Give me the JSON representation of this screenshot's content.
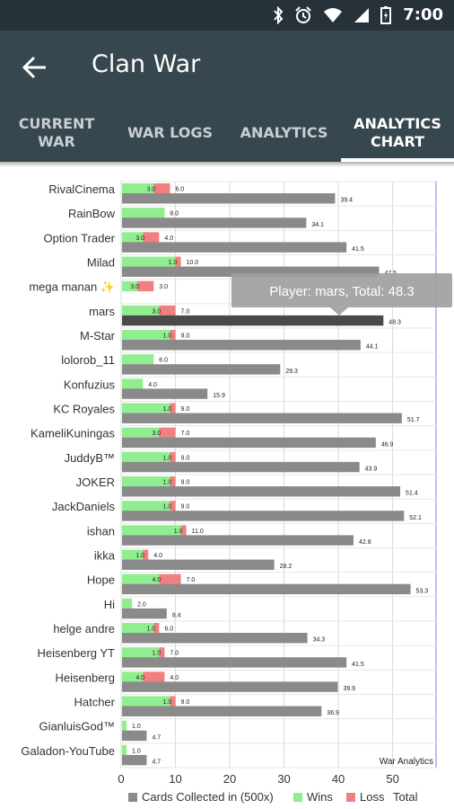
{
  "status_bar": {
    "time": "7:00",
    "icons": [
      "bluetooth-icon",
      "alarm-icon",
      "wifi-icon",
      "signal-icon",
      "battery-charging-icon"
    ]
  },
  "app_bar": {
    "title": "Clan War",
    "back_icon": "arrow-back-icon"
  },
  "tabs": [
    {
      "label": "CURRENT WAR",
      "line1": "CURRENT",
      "line2": "WAR",
      "active": false
    },
    {
      "label": "WAR LOGS",
      "line1": "WAR LOGS",
      "line2": "",
      "active": false
    },
    {
      "label": "ANALYTICS",
      "line1": "ANALYTICS",
      "line2": "",
      "active": false
    },
    {
      "label": "ANALYTICS CHART",
      "line1": "ANALYTICS",
      "line2": "CHART",
      "active": true
    }
  ],
  "colors": {
    "cards": "#8a8a8a",
    "wins": "#90ee90",
    "loss": "#f08080",
    "highlight": "#4a4a4a",
    "border": "#8a7ee0"
  },
  "chart_data": {
    "type": "bar",
    "orientation": "horizontal",
    "description_label": "War Analytics",
    "categories": [
      "RivalCinema",
      "RainBow",
      "Option Trader",
      "Milad",
      "mega manan ✨",
      "mars",
      "M-Star",
      "lolorob_11",
      "Konfuzius",
      "KC Royales",
      "KameliKuningas",
      "JuddyB™",
      "JOKER",
      "JackDaniels",
      "ishan",
      "ikka",
      "Hope",
      "Hi",
      "helge andre",
      "Heisenberg YT",
      "Heisenberg",
      "Hatcher",
      "GianluisGod™",
      "Galadon-YouTube"
    ],
    "series": [
      {
        "name": "Cards Collected in (500x)",
        "values": [
          39.4,
          34.1,
          41.5,
          47.5,
          null,
          48.3,
          44.1,
          29.3,
          15.9,
          51.7,
          46.9,
          43.9,
          51.4,
          52.1,
          42.8,
          28.2,
          53.3,
          8.4,
          34.3,
          41.5,
          39.9,
          36.9,
          4.7,
          4.7
        ]
      },
      {
        "name": "Wins",
        "values": [
          6.0,
          8.0,
          4.0,
          10.0,
          3.0,
          7.0,
          9.0,
          6.0,
          4.0,
          9.0,
          7.0,
          9.0,
          9.0,
          9.0,
          11.0,
          4.0,
          7.0,
          2.0,
          6.0,
          7.0,
          4.0,
          9.0,
          1.0,
          1.0
        ]
      },
      {
        "name": "Loss",
        "values": [
          3.0,
          0.0,
          3.0,
          1.0,
          3.0,
          3.0,
          1.0,
          0.0,
          0.0,
          1.0,
          3.0,
          1.0,
          1.0,
          1.0,
          1.0,
          1.0,
          4.0,
          0.0,
          1.0,
          1.0,
          4.0,
          1.0,
          0.0,
          0.0
        ]
      },
      {
        "name": "Total",
        "values": [
          null,
          null,
          null,
          null,
          null,
          null,
          null,
          null,
          null,
          null,
          null,
          null,
          null,
          null,
          null,
          null,
          null,
          null,
          null,
          null,
          null,
          null,
          null,
          null
        ]
      }
    ],
    "label_texts": {
      "wins": [
        "6.0",
        "8.0",
        "4.0",
        "10.0",
        "3.0",
        "7.0",
        "9.0",
        "6.0",
        "4.0",
        "9.0",
        "7.0",
        "9.0",
        "9.0",
        "9.0",
        "11.0",
        "4.0",
        "7.0",
        "2.0",
        "6.0",
        "7.0",
        "4.0",
        "9.0",
        "1.0",
        "1.0"
      ],
      "loss": [
        "3.0",
        "",
        "3.0",
        "1.0",
        "3.0",
        "3.0",
        "1.0",
        "",
        "",
        "1.0",
        "3.0",
        "1.0",
        "1.0",
        "1.0",
        "1.0",
        "1.0",
        "4.0",
        "",
        "1.0",
        "1.0",
        "4.0",
        "1.0",
        "",
        ""
      ],
      "cards": [
        "39.4",
        "34.1",
        "41.5",
        "47.5",
        "",
        "48.3",
        "44.1",
        "29.3",
        "15.9",
        "51.7",
        "46.9",
        "43.9",
        "51.4",
        "52.1",
        "42.8",
        "28.2",
        "53.3",
        "8.4",
        "34.3",
        "41.5",
        "39.9",
        "36.9",
        "4.7",
        "4.7"
      ]
    },
    "xlim": [
      0,
      58
    ],
    "xticks": [
      "0",
      "10",
      "20",
      "30",
      "40",
      "50"
    ],
    "highlighted_index": 5,
    "tooltip": "Player: mars, Total: 48.3",
    "legend": {
      "placement": "bottom",
      "items": [
        "Cards Collected in (500x)",
        "Wins",
        "Loss",
        "Total"
      ]
    },
    "grid": true
  }
}
